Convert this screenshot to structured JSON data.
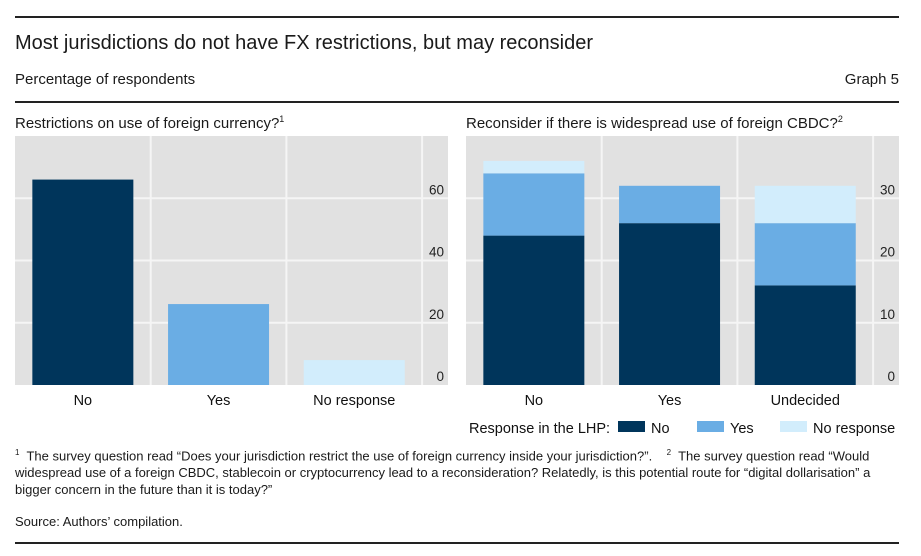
{
  "header": {
    "title": "Most jurisdictions do not have FX restrictions, but may reconsider",
    "subtitle": "Percentage of respondents",
    "graph_label": "Graph 5"
  },
  "colors": {
    "no": "#00355b",
    "yes": "#6aade4",
    "no_response": "#d2edfc",
    "plot_bg": "#e1e1e1",
    "grid": "#f5f5f5"
  },
  "chart_data": [
    {
      "type": "bar",
      "title": "Restrictions on use of foreign currency?",
      "title_footnote": "1",
      "categories": [
        "No",
        "Yes",
        "No response"
      ],
      "values": [
        66,
        26,
        8
      ],
      "color_keys": [
        "no",
        "yes",
        "no_response"
      ],
      "xlabel": "",
      "ylabel": "",
      "ylim": [
        0,
        80
      ],
      "yticks": [
        0,
        20,
        40,
        60
      ],
      "ytick_labels": [
        "0",
        "20",
        "40",
        "60"
      ],
      "y_axis_side": "right",
      "grid": true
    },
    {
      "type": "bar",
      "stacked": true,
      "title": "Reconsider if there is widespread use of foreign CBDC?",
      "title_footnote": "2",
      "categories": [
        "No",
        "Yes",
        "Undecided"
      ],
      "series": [
        {
          "name": "No",
          "color_key": "no",
          "values": [
            24,
            26,
            16
          ]
        },
        {
          "name": "Yes",
          "color_key": "yes",
          "values": [
            10,
            6,
            10
          ]
        },
        {
          "name": "No response",
          "color_key": "no_response",
          "values": [
            2,
            0,
            6
          ]
        }
      ],
      "xlabel": "",
      "ylabel": "",
      "ylim": [
        0,
        40
      ],
      "yticks": [
        0,
        10,
        20,
        30
      ],
      "ytick_labels": [
        "0",
        "10",
        "20",
        "30"
      ],
      "y_axis_side": "right",
      "grid": true,
      "legend": {
        "title": "Response in the LHP:",
        "placement": "bottom",
        "entries": [
          "No",
          "Yes",
          "No response"
        ]
      }
    }
  ],
  "footnotes": {
    "n1_marker": "1",
    "n1_text": "The survey question read “Does your jurisdiction restrict the use of foreign currency inside your jurisdiction?”.",
    "n2_marker": "2",
    "n2_text": "The survey question read “Would widespread use of a foreign CBDC, stablecoin or cryptocurrency lead to a reconsideration? Relatedly, is this potential route for “digital dollarisation” a bigger concern in the future than it is today?”"
  },
  "source": "Source: Authors’ compilation."
}
